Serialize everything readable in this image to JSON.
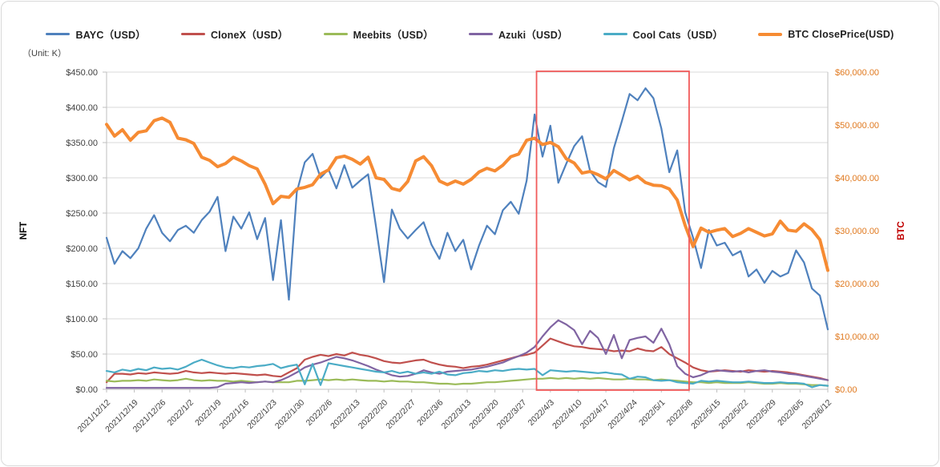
{
  "panel": {
    "background": "#FFFFFF",
    "border_color": "#D9D9D9",
    "grid_color": "#D9D9D9",
    "axis_line_color": "#BFBFBF"
  },
  "chart_data": {
    "type": "line",
    "title": "",
    "legend_position": "top",
    "grid": true,
    "x_total_days": 182,
    "point_day_step": 2,
    "start_date": "2021/12/12",
    "end_date": "2022/6/12",
    "x_tick_labels": [
      "2021/12/12",
      "2021/12/19",
      "2021/12/26",
      "2022/1/2",
      "2022/1/9",
      "2022/1/16",
      "2022/1/23",
      "2022/1/30",
      "2022/2/6",
      "2022/2/13",
      "2022/2/20",
      "2022/2/27",
      "2022/3/6",
      "2022/3/13",
      "2022/3/20",
      "2022/3/27",
      "2022/4/3",
      "2022/4/10",
      "2022/4/17",
      "2022/4/24",
      "2022/5/1",
      "2022/5/8",
      "2022/5/15",
      "2022/5/22",
      "2022/5/29",
      "2022/6/5",
      "2022/6/12"
    ],
    "left_axis": {
      "label": "NFT",
      "unit_note": "（Unit: K）",
      "range": [
        0,
        450
      ],
      "tick_step": 50,
      "tick_labels": [
        "$450.00",
        "$400.00",
        "$350.00",
        "$300.00",
        "$250.00",
        "$200.00",
        "$150.00",
        "$100.00",
        "$50.00",
        "$0.00"
      ],
      "label_color": "#404040",
      "title_color": "#000000"
    },
    "right_axis": {
      "label": "BTC",
      "range": [
        0,
        60000
      ],
      "tick_step": 10000,
      "tick_labels": [
        "$60,000.00",
        "$50,000.00",
        "$40,000.00",
        "$30,000.00",
        "$20,000.00",
        "$10,000.00",
        "$0.00"
      ],
      "label_color": "#E0791F",
      "title_color": "#C00000"
    },
    "annotation_box": {
      "from": "2022/4/2",
      "to": "2022/5/8",
      "start_day": 108.5,
      "end_day": 147,
      "color": "#F15B5B"
    },
    "series": [
      {
        "name": "BAYC",
        "legend_label": "BAYC（USD）",
        "axis": "left",
        "color": "#4F81BD",
        "width": 2.2,
        "values": [
          215,
          178,
          196,
          186,
          200,
          228,
          247,
          222,
          210,
          226,
          232,
          222,
          240,
          252,
          273,
          196,
          245,
          228,
          251,
          213,
          243,
          155,
          240,
          127,
          280,
          322,
          334,
          300,
          312,
          285,
          318,
          286,
          296,
          305,
          230,
          152,
          255,
          228,
          214,
          226,
          237,
          205,
          185,
          222,
          196,
          212,
          170,
          204,
          232,
          220,
          254,
          266,
          249,
          296,
          390,
          330,
          374,
          293,
          320,
          345,
          359,
          310,
          294,
          287,
          342,
          380,
          419,
          410,
          427,
          413,
          370,
          308,
          339,
          251,
          215,
          172,
          226,
          204,
          208,
          190,
          196,
          160,
          170,
          151,
          168,
          160,
          165,
          197,
          180,
          143,
          133,
          85
        ]
      },
      {
        "name": "CloneX",
        "legend_label": "CloneX（USD）",
        "axis": "left",
        "color": "#C0504D",
        "width": 2.2,
        "values": [
          10,
          22,
          22,
          21,
          23,
          22,
          24,
          23,
          22,
          23,
          26,
          24,
          23,
          24,
          23,
          22,
          23,
          22,
          21,
          20,
          21,
          19,
          18,
          24,
          30,
          42,
          46,
          49,
          47,
          50,
          48,
          52,
          49,
          47,
          44,
          40,
          38,
          37,
          39,
          41,
          42,
          38,
          35,
          33,
          32,
          30,
          32,
          33,
          35,
          38,
          41,
          44,
          47,
          49,
          52,
          62,
          72,
          68,
          64,
          61,
          60,
          58,
          57,
          56,
          54,
          55,
          54,
          58,
          55,
          54,
          60,
          50,
          44,
          38,
          31,
          27,
          25,
          26,
          27,
          26,
          25,
          27,
          26,
          25,
          26,
          25,
          24,
          22,
          20,
          18,
          16,
          13
        ]
      },
      {
        "name": "Meebits",
        "legend_label": "Meebits（USD）",
        "axis": "left",
        "color": "#9BBB59",
        "width": 2.2,
        "values": [
          12,
          11,
          12,
          12,
          13,
          12,
          14,
          13,
          12,
          13,
          15,
          13,
          12,
          13,
          12,
          12,
          11,
          12,
          11,
          10,
          11,
          10,
          10,
          10,
          12,
          12,
          13,
          14,
          13,
          14,
          13,
          14,
          13,
          12,
          12,
          11,
          12,
          11,
          11,
          10,
          10,
          9,
          8,
          8,
          7,
          8,
          8,
          9,
          10,
          10,
          11,
          12,
          13,
          14,
          15,
          15,
          16,
          15,
          16,
          15,
          16,
          15,
          16,
          15,
          14,
          14,
          15,
          14,
          14,
          13,
          14,
          13,
          12,
          11,
          10,
          10,
          9,
          10,
          9,
          9,
          9,
          10,
          9,
          8,
          8,
          9,
          8,
          8,
          7,
          6,
          6,
          5
        ]
      },
      {
        "name": "Azuki",
        "legend_label": "Azuki（USD）",
        "axis": "left",
        "color": "#8064A2",
        "width": 2.2,
        "values": [
          2,
          2,
          2,
          2,
          2,
          2,
          2,
          2,
          2,
          2,
          2,
          2,
          2,
          2,
          3,
          8,
          9,
          10,
          9,
          10,
          11,
          10,
          13,
          18,
          24,
          31,
          35,
          38,
          42,
          46,
          44,
          41,
          37,
          33,
          28,
          24,
          20,
          18,
          19,
          22,
          27,
          24,
          22,
          25,
          26,
          27,
          28,
          30,
          32,
          35,
          38,
          43,
          47,
          52,
          60,
          75,
          88,
          98,
          92,
          84,
          64,
          83,
          73,
          50,
          77,
          44,
          70,
          73,
          75,
          66,
          86,
          64,
          33,
          22,
          17,
          20,
          25,
          27,
          26,
          25,
          26,
          24,
          26,
          27,
          25,
          24,
          22,
          21,
          19,
          17,
          15,
          13
        ]
      },
      {
        "name": "Cool Cats",
        "legend_label": "Cool Cats（USD）",
        "axis": "left",
        "color": "#4BACC6",
        "width": 2.2,
        "values": [
          26,
          24,
          28,
          26,
          29,
          27,
          31,
          29,
          30,
          28,
          32,
          38,
          42,
          38,
          34,
          31,
          30,
          32,
          31,
          33,
          34,
          36,
          30,
          33,
          35,
          7,
          36,
          6,
          37,
          35,
          33,
          31,
          29,
          27,
          25,
          24,
          26,
          23,
          25,
          22,
          24,
          22,
          25,
          21,
          20,
          23,
          24,
          26,
          25,
          27,
          26,
          28,
          29,
          28,
          29,
          20,
          27,
          26,
          25,
          26,
          25,
          24,
          23,
          24,
          22,
          21,
          15,
          18,
          17,
          13,
          12,
          13,
          10,
          9,
          8,
          12,
          11,
          12,
          11,
          10,
          10,
          11,
          10,
          9,
          9,
          10,
          9,
          9,
          8,
          3,
          6,
          5
        ]
      },
      {
        "name": "BTC ClosePrice",
        "legend_label": "BTC ClosePrice(USD)",
        "axis": "right",
        "color": "#F68B33",
        "width": 4,
        "values": [
          50100,
          47900,
          49100,
          47100,
          48600,
          48900,
          50800,
          51300,
          50500,
          47500,
          47200,
          46500,
          43900,
          43300,
          42100,
          42700,
          43900,
          43200,
          42300,
          41700,
          38800,
          35100,
          36500,
          36300,
          37900,
          38200,
          38700,
          40700,
          41500,
          43800,
          44100,
          43500,
          42600,
          43900,
          40000,
          39700,
          38000,
          37600,
          39300,
          43200,
          44000,
          42300,
          39400,
          38700,
          39400,
          38800,
          39700,
          41100,
          41800,
          41300,
          42400,
          44000,
          44500,
          47100,
          47500,
          46300,
          46700,
          45900,
          43600,
          42800,
          40900,
          41200,
          40600,
          39800,
          41400,
          40500,
          39600,
          40300,
          39100,
          38600,
          38500,
          37900,
          35800,
          31000,
          27000,
          30500,
          29700,
          30100,
          30400,
          28900,
          29500,
          30400,
          29700,
          29000,
          29400,
          31800,
          30100,
          29900,
          31300,
          30200,
          28300,
          22500
        ]
      }
    ]
  }
}
